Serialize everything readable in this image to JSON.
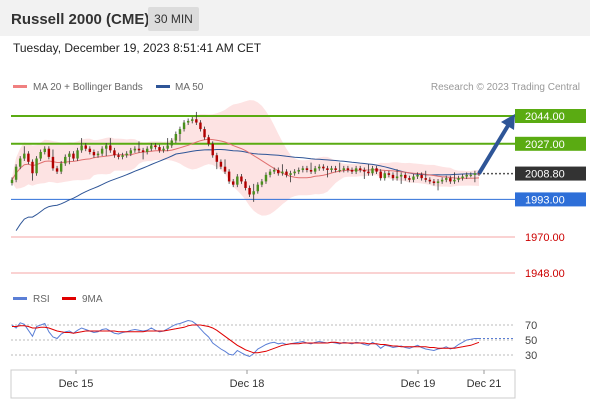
{
  "header": {
    "title": "Russell 2000 (CME)",
    "interval": "30 MIN"
  },
  "timestamp": "Tuesday, December 19, 2023 8:51:41 AM CET",
  "legend": [
    {
      "label": "MA 20 + Bollinger Bands",
      "color": "#f08080"
    },
    {
      "label": "MA 50",
      "color": "#2e5597"
    }
  ],
  "credit": "Research © 2023 Trading Central",
  "rsi_legend": [
    {
      "label": "RSI",
      "color": "#5b7fd6"
    },
    {
      "label": "9MA",
      "color": "#e00000"
    }
  ],
  "colors": {
    "resistance": "#5aab12",
    "support": "#2e6fd8",
    "support_light": "#f4a6a6",
    "candle_up": "#4a8f1d",
    "candle_down": "#b00000",
    "arrow": "#2e5597",
    "last_price": "#333333"
  },
  "chart_data": [
    {
      "type": "candlestick",
      "x_labels": [
        "Dec 15",
        "Dec 18",
        "Dec 19",
        "Dec 21"
      ],
      "ylim": [
        1944,
        2052
      ],
      "levels": [
        {
          "label": "2044.00",
          "value": 2044,
          "kind": "resistance"
        },
        {
          "label": "2027.00",
          "value": 2027,
          "kind": "resistance"
        },
        {
          "label": "2008.80",
          "value": 2008.8,
          "kind": "last"
        },
        {
          "label": "1993.00",
          "value": 1993,
          "kind": "support"
        },
        {
          "label": "1970.00",
          "value": 1970,
          "kind": "support_light"
        },
        {
          "label": "1948.00",
          "value": 1948,
          "kind": "support_light"
        }
      ],
      "close": [
        2005,
        2013,
        2018,
        2021,
        2016,
        2009,
        2018,
        2022,
        2024,
        2019,
        2012,
        2010,
        2015,
        2019,
        2021,
        2018,
        2023,
        2026,
        2024,
        2022,
        2020,
        2021,
        2024,
        2026,
        2023,
        2020,
        2019,
        2020,
        2021,
        2023,
        2024,
        2023,
        2022,
        2024,
        2026,
        2025,
        2023,
        2024,
        2026,
        2029,
        2033,
        2036,
        2040,
        2041,
        2042,
        2040,
        2036,
        2031,
        2027,
        2020,
        2016,
        2013,
        2010,
        2004,
        2002,
        2007,
        2004,
        2000,
        1996,
        1998,
        2002,
        2004,
        2008,
        2010,
        2011,
        2009,
        2010,
        2008,
        2009,
        2010,
        2011,
        2012,
        2011,
        2010,
        2012,
        2013,
        2012,
        2011,
        2012,
        2011,
        2011,
        2012,
        2011,
        2010,
        2012,
        2011,
        2010,
        2009,
        2012,
        2010,
        2006,
        2009,
        2008,
        2006,
        2007,
        2008,
        2006,
        2005,
        2007,
        2008,
        2006,
        2005,
        2004,
        2003,
        2004,
        2005,
        2006,
        2004,
        2005,
        2006,
        2007,
        2008,
        2008,
        2009,
        2008.8
      ],
      "projection": {
        "from": 2008.8,
        "to": 2044
      },
      "projection_segment": {
        "from_x": 479,
        "to_x": 513
      }
    },
    {
      "type": "line",
      "name": "RSI",
      "ylim": [
        10,
        90
      ],
      "ticks": [
        70,
        50,
        30
      ],
      "values": [
        70,
        66,
        73,
        71,
        63,
        55,
        68,
        70,
        72,
        61,
        54,
        52,
        58,
        61,
        62,
        59,
        63,
        66,
        64,
        62,
        60,
        61,
        64,
        65,
        62,
        59,
        58,
        60,
        61,
        63,
        64,
        63,
        62,
        63,
        66,
        63,
        61,
        62,
        65,
        68,
        71,
        72,
        74,
        76,
        75,
        71,
        65,
        59,
        54,
        46,
        42,
        38,
        35,
        31,
        30,
        36,
        33,
        30,
        28,
        32,
        38,
        41,
        44,
        46,
        47,
        45,
        46,
        44,
        45,
        46,
        47,
        48,
        46,
        45,
        47,
        48,
        47,
        46,
        47,
        46,
        45,
        47,
        46,
        45,
        47,
        46,
        44,
        43,
        47,
        44,
        39,
        43,
        42,
        40,
        41,
        42,
        40,
        39,
        41,
        43,
        40,
        38,
        37,
        36,
        38,
        39,
        41,
        38,
        40,
        44,
        47,
        50,
        51,
        52,
        52
      ]
    },
    {
      "type": "line",
      "name": "9MA",
      "values": [
        68,
        68,
        69,
        69,
        68,
        66,
        66,
        67,
        67,
        66,
        64,
        62,
        61,
        60,
        60,
        59,
        60,
        61,
        62,
        62,
        62,
        62,
        62,
        62,
        62,
        62,
        61,
        61,
        61,
        61,
        61,
        61,
        61,
        62,
        62,
        62,
        62,
        62,
        63,
        64,
        65,
        66,
        67,
        69,
        70,
        70,
        70,
        69,
        68,
        66,
        63,
        59,
        55,
        51,
        47,
        43,
        40,
        37,
        35,
        33,
        33,
        34,
        35,
        37,
        39,
        41,
        43,
        44,
        45,
        45,
        45,
        46,
        46,
        46,
        46,
        46,
        46,
        46,
        47,
        47,
        46,
        46,
        46,
        46,
        46,
        46,
        46,
        45,
        45,
        45,
        44,
        44,
        43,
        42,
        42,
        41,
        41,
        41,
        41,
        41,
        41,
        41,
        40,
        40,
        39,
        39,
        39,
        39,
        39,
        40,
        41,
        42,
        43,
        45,
        47
      ]
    }
  ]
}
